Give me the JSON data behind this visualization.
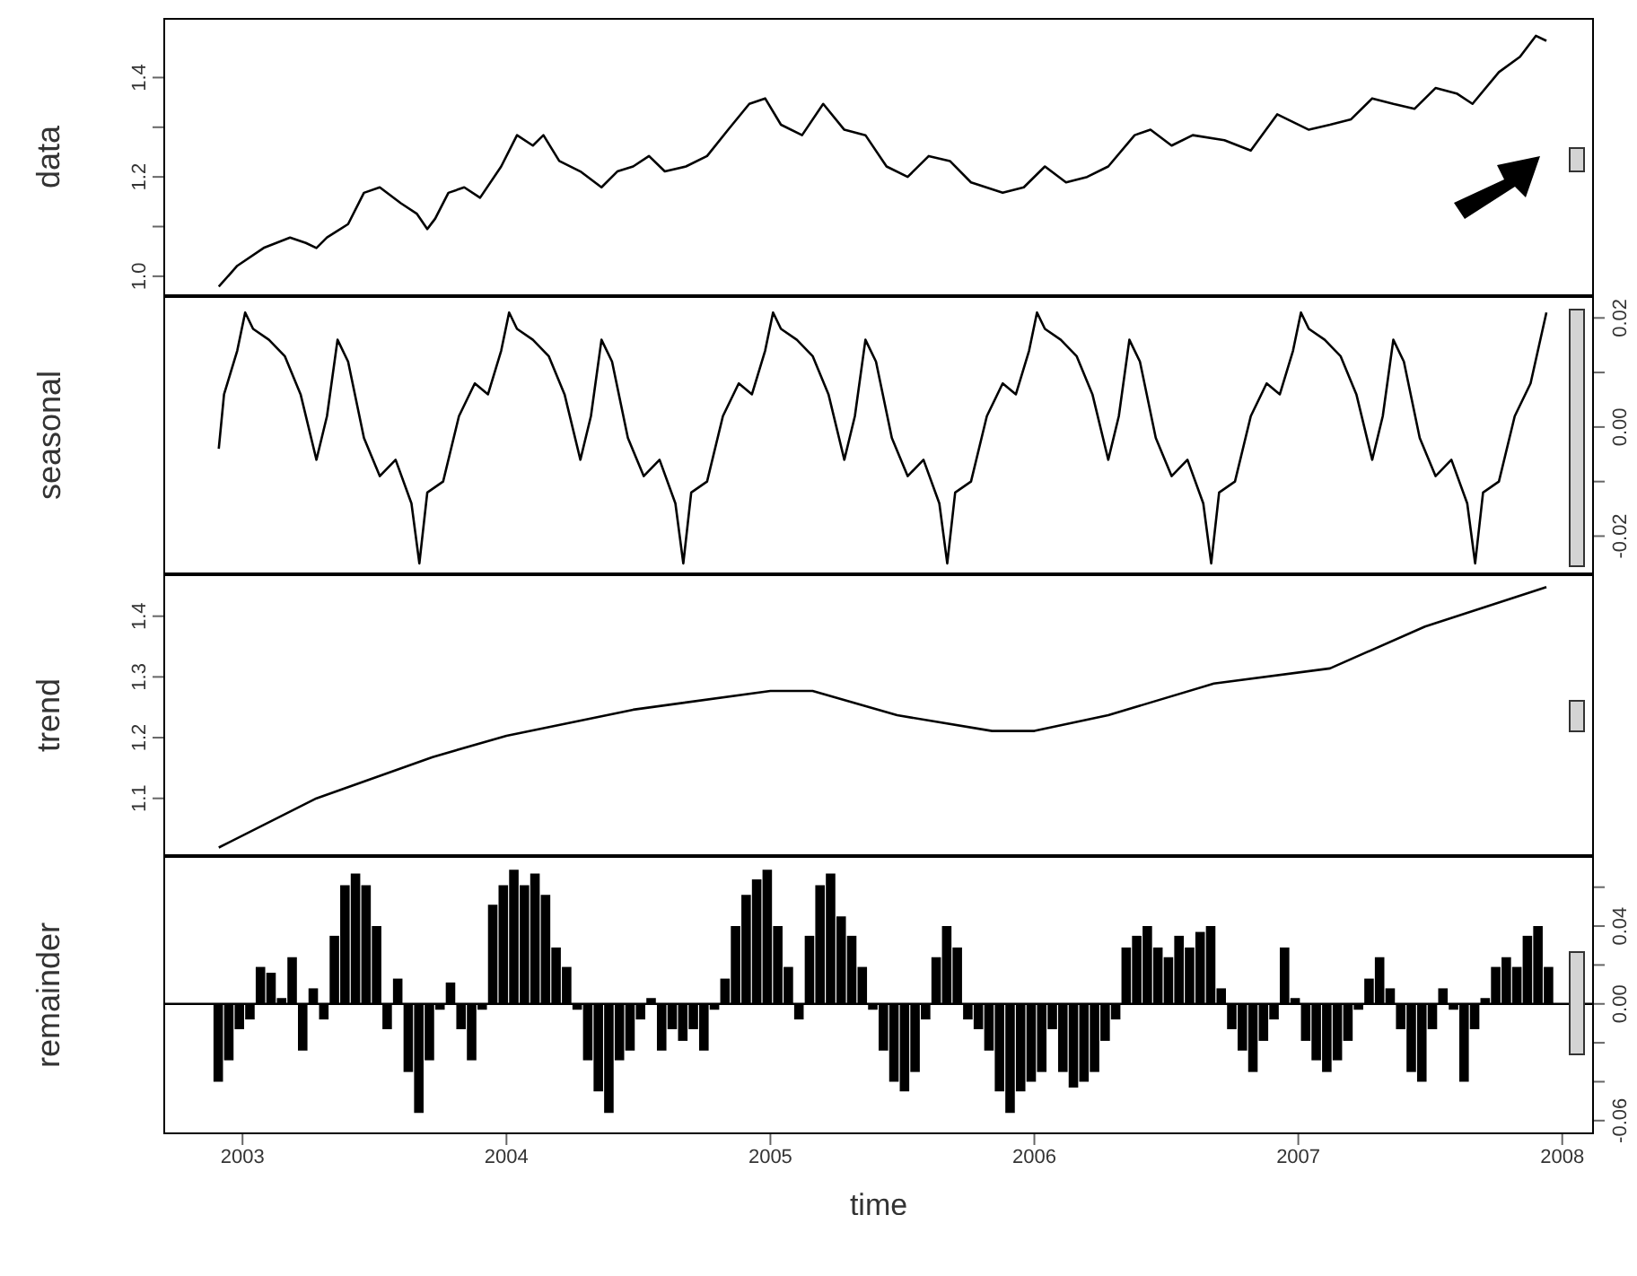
{
  "chart_data": [
    {
      "type": "line",
      "ylabel": "data",
      "color": "#000000",
      "xlim": [
        2002.7,
        2008.12
      ],
      "xticks": [
        2003,
        2004,
        2005,
        2006,
        2007,
        2008
      ],
      "tick_labels": "y",
      "ylim": [
        0.96,
        1.52
      ],
      "yticks": [
        {
          "value": 1,
          "label": "1.0"
        },
        {
          "value": 1.1,
          "label": null
        },
        1.2,
        {
          "value": 1.3,
          "label": null
        },
        1.4
      ],
      "x": [
        2002.91,
        2002.98,
        2003.08,
        2003.18,
        2003.24,
        2003.28,
        2003.32,
        2003.4,
        2003.46,
        2003.52,
        2003.6,
        2003.66,
        2003.7,
        2003.73,
        2003.78,
        2003.84,
        2003.9,
        2003.98,
        2004.04,
        2004.1,
        2004.14,
        2004.2,
        2004.28,
        2004.36,
        2004.42,
        2004.48,
        2004.54,
        2004.6,
        2004.68,
        2004.76,
        2004.84,
        2004.92,
        2004.98,
        2005.04,
        2005.12,
        2005.2,
        2005.28,
        2005.36,
        2005.44,
        2005.52,
        2005.6,
        2005.68,
        2005.76,
        2005.88,
        2005.96,
        2006.04,
        2006.12,
        2006.2,
        2006.28,
        2006.38,
        2006.44,
        2006.52,
        2006.6,
        2006.72,
        2006.82,
        2006.92,
        2007.04,
        2007.12,
        2007.2,
        2007.28,
        2007.36,
        2007.44,
        2007.52,
        2007.6,
        2007.66,
        2007.76,
        2007.84,
        2007.9,
        2007.94
      ],
      "values": [
        0.979,
        1.021,
        1.057,
        1.078,
        1.067,
        1.057,
        1.078,
        1.105,
        1.168,
        1.179,
        1.147,
        1.126,
        1.095,
        1.116,
        1.168,
        1.179,
        1.158,
        1.221,
        1.284,
        1.263,
        1.284,
        1.232,
        1.211,
        1.179,
        1.211,
        1.221,
        1.242,
        1.211,
        1.221,
        1.242,
        1.295,
        1.347,
        1.358,
        1.305,
        1.284,
        1.347,
        1.295,
        1.284,
        1.221,
        1.2,
        1.242,
        1.232,
        1.189,
        1.168,
        1.179,
        1.221,
        1.189,
        1.2,
        1.221,
        1.284,
        1.295,
        1.263,
        1.284,
        1.274,
        1.253,
        1.326,
        1.295,
        1.305,
        1.316,
        1.358,
        1.347,
        1.337,
        1.379,
        1.368,
        1.347,
        1.411,
        1.442,
        1.484,
        1.474
      ]
    },
    {
      "type": "line",
      "ylabel": "seasonal",
      "color": "#000000",
      "xlim": [
        2002.7,
        2008.12
      ],
      "xticks": [
        2003,
        2004,
        2005,
        2006,
        2007,
        2008
      ],
      "tick_labels": "y",
      "ylim": [
        -0.027,
        0.024
      ],
      "yticks": [
        -0.02,
        {
          "value": -0.01,
          "label": null
        },
        {
          "value": 0,
          "label": "0.00"
        },
        {
          "value": 0.01,
          "label": null
        },
        0.02
      ],
      "x": [
        2002.91,
        2002.93,
        2002.98,
        2003.01,
        2003.04,
        2003.1,
        2003.16,
        2003.22,
        2003.28,
        2003.32,
        2003.36,
        2003.4,
        2003.46,
        2003.52,
        2003.58,
        2003.64,
        2003.67,
        2003.7,
        2003.76,
        2003.82,
        2003.88,
        2003.93,
        2003.98,
        2004.01,
        2004.04,
        2004.1,
        2004.16,
        2004.22,
        2004.28,
        2004.32,
        2004.36,
        2004.4,
        2004.46,
        2004.52,
        2004.58,
        2004.64,
        2004.67,
        2004.7,
        2004.76,
        2004.82,
        2004.88,
        2004.93,
        2004.98,
        2005.01,
        2005.04,
        2005.1,
        2005.16,
        2005.22,
        2005.28,
        2005.32,
        2005.36,
        2005.4,
        2005.46,
        2005.52,
        2005.58,
        2005.64,
        2005.67,
        2005.7,
        2005.76,
        2005.82,
        2005.88,
        2005.93,
        2005.98,
        2006.01,
        2006.04,
        2006.1,
        2006.16,
        2006.22,
        2006.28,
        2006.32,
        2006.36,
        2006.4,
        2006.46,
        2006.52,
        2006.58,
        2006.64,
        2006.67,
        2006.7,
        2006.76,
        2006.82,
        2006.88,
        2006.93,
        2006.98,
        2007.01,
        2007.04,
        2007.1,
        2007.16,
        2007.22,
        2007.28,
        2007.32,
        2007.36,
        2007.4,
        2007.46,
        2007.52,
        2007.58,
        2007.64,
        2007.67,
        2007.7,
        2007.76,
        2007.82,
        2007.88,
        2007.94
      ],
      "values": [
        -0.004,
        0.006,
        0.014,
        0.021,
        0.018,
        0.016,
        0.013,
        0.006,
        -0.006,
        0.002,
        0.016,
        0.012,
        -0.002,
        -0.009,
        -0.006,
        -0.014,
        -0.025,
        -0.012,
        -0.01,
        0.002,
        0.008,
        0.006,
        0.014,
        0.021,
        0.018,
        0.016,
        0.013,
        0.006,
        -0.006,
        0.002,
        0.016,
        0.012,
        -0.002,
        -0.009,
        -0.006,
        -0.014,
        -0.025,
        -0.012,
        -0.01,
        0.002,
        0.008,
        0.006,
        0.014,
        0.021,
        0.018,
        0.016,
        0.013,
        0.006,
        -0.006,
        0.002,
        0.016,
        0.012,
        -0.002,
        -0.009,
        -0.006,
        -0.014,
        -0.025,
        -0.012,
        -0.01,
        0.002,
        0.008,
        0.006,
        0.014,
        0.021,
        0.018,
        0.016,
        0.013,
        0.006,
        -0.006,
        0.002,
        0.016,
        0.012,
        -0.002,
        -0.009,
        -0.006,
        -0.014,
        -0.025,
        -0.012,
        -0.01,
        0.002,
        0.008,
        0.006,
        0.014,
        0.021,
        0.018,
        0.016,
        0.013,
        0.006,
        -0.006,
        0.002,
        0.016,
        0.012,
        -0.002,
        -0.009,
        -0.006,
        -0.014,
        -0.025,
        -0.012,
        -0.01,
        0.002,
        0.008,
        0.021
      ]
    },
    {
      "type": "line",
      "ylabel": "trend",
      "color": "#000000",
      "xlim": [
        2002.7,
        2008.12
      ],
      "xticks": [
        2003,
        2004,
        2005,
        2006,
        2007,
        2008
      ],
      "tick_labels": "y",
      "ylim": [
        1.005,
        1.469
      ],
      "yticks": [
        1.1,
        1.2,
        1.3,
        1.4
      ],
      "x": [
        2002.91,
        2003.28,
        2003.72,
        2004.0,
        2004.48,
        2005.0,
        2005.16,
        2005.48,
        2005.84,
        2006.0,
        2006.28,
        2006.68,
        2007.12,
        2007.48,
        2007.94
      ],
      "values": [
        1.019,
        1.1,
        1.168,
        1.203,
        1.246,
        1.277,
        1.277,
        1.237,
        1.211,
        1.211,
        1.237,
        1.289,
        1.314,
        1.383,
        1.448
      ]
    },
    {
      "type": "bar",
      "ylabel": "remainder",
      "xlabel": "time",
      "color": "#000000",
      "xlim": [
        2002.7,
        2008.12
      ],
      "xticks": [
        2003,
        2004,
        2005,
        2006,
        2007,
        2008
      ],
      "ylim": [
        -0.067,
        0.076
      ],
      "yticks": [
        -0.06,
        {
          "value": -0.04,
          "label": null
        },
        {
          "value": -0.02,
          "label": null
        },
        {
          "value": 0,
          "label": "0.00"
        },
        {
          "value": 0.02,
          "label": null
        },
        0.04,
        {
          "value": 0.06,
          "label": null
        }
      ],
      "ref_lines": [
        {
          "axis": "y",
          "value": 0
        }
      ],
      "x": [
        2002.91,
        2002.95,
        2002.99,
        2003.03,
        2003.07,
        2003.11,
        2003.15,
        2003.19,
        2003.23,
        2003.27,
        2003.31,
        2003.35,
        2003.39,
        2003.43,
        2003.47,
        2003.51,
        2003.55,
        2003.59,
        2003.63,
        2003.67,
        2003.71,
        2003.75,
        2003.79,
        2003.83,
        2003.87,
        2003.91,
        2003.95,
        2003.99,
        2004.03,
        2004.07,
        2004.11,
        2004.15,
        2004.19,
        2004.23,
        2004.27,
        2004.31,
        2004.35,
        2004.39,
        2004.43,
        2004.47,
        2004.51,
        2004.55,
        2004.59,
        2004.63,
        2004.67,
        2004.71,
        2004.75,
        2004.79,
        2004.83,
        2004.87,
        2004.91,
        2004.95,
        2004.99,
        2005.03,
        2005.07,
        2005.11,
        2005.15,
        2005.19,
        2005.23,
        2005.27,
        2005.31,
        2005.35,
        2005.39,
        2005.43,
        2005.47,
        2005.51,
        2005.55,
        2005.59,
        2005.63,
        2005.67,
        2005.71,
        2005.75,
        2005.79,
        2005.83,
        2005.87,
        2005.91,
        2005.95,
        2005.99,
        2006.03,
        2006.07,
        2006.11,
        2006.15,
        2006.19,
        2006.23,
        2006.27,
        2006.31,
        2006.35,
        2006.39,
        2006.43,
        2006.47,
        2006.51,
        2006.55,
        2006.59,
        2006.63,
        2006.67,
        2006.71,
        2006.75,
        2006.79,
        2006.83,
        2006.87,
        2006.91,
        2006.95,
        2006.99,
        2007.03,
        2007.07,
        2007.11,
        2007.15,
        2007.19,
        2007.23,
        2007.27,
        2007.31,
        2007.35,
        2007.39,
        2007.43,
        2007.47,
        2007.51,
        2007.55,
        2007.59,
        2007.63,
        2007.67,
        2007.71,
        2007.75,
        2007.79,
        2007.83,
        2007.87,
        2007.91,
        2007.95
      ],
      "values": [
        -0.04,
        -0.029,
        -0.013,
        -0.008,
        0.019,
        0.016,
        0.003,
        0.024,
        -0.024,
        0.008,
        -0.008,
        0.035,
        0.061,
        0.067,
        0.061,
        0.04,
        -0.013,
        0.013,
        -0.035,
        -0.056,
        -0.029,
        -0.003,
        0.011,
        -0.013,
        -0.029,
        -0.003,
        0.051,
        0.061,
        0.069,
        0.061,
        0.067,
        0.056,
        0.029,
        0.019,
        -0.003,
        -0.029,
        -0.045,
        -0.056,
        -0.029,
        -0.024,
        -0.008,
        0.003,
        -0.024,
        -0.013,
        -0.019,
        -0.013,
        -0.024,
        -0.003,
        0.013,
        0.04,
        0.056,
        0.064,
        0.069,
        0.04,
        0.019,
        -0.008,
        0.035,
        0.061,
        0.067,
        0.045,
        0.035,
        0.019,
        -0.003,
        -0.024,
        -0.04,
        -0.045,
        -0.035,
        -0.008,
        0.024,
        0.04,
        0.029,
        -0.008,
        -0.013,
        -0.024,
        -0.045,
        -0.056,
        -0.045,
        -0.04,
        -0.035,
        -0.013,
        -0.035,
        -0.043,
        -0.04,
        -0.035,
        -0.019,
        -0.008,
        0.029,
        0.035,
        0.04,
        0.029,
        0.024,
        0.035,
        0.029,
        0.037,
        0.04,
        0.008,
        -0.013,
        -0.024,
        -0.035,
        -0.019,
        -0.008,
        0.029,
        0.003,
        -0.019,
        -0.029,
        -0.035,
        -0.029,
        -0.019,
        -0.003,
        0.013,
        0.024,
        0.008,
        -0.013,
        -0.035,
        -0.04,
        -0.013,
        0.008,
        -0.003,
        -0.04,
        -0.013,
        0.003,
        0.019,
        0.024,
        0.019,
        0.035,
        0.04,
        0.019
      ]
    }
  ]
}
